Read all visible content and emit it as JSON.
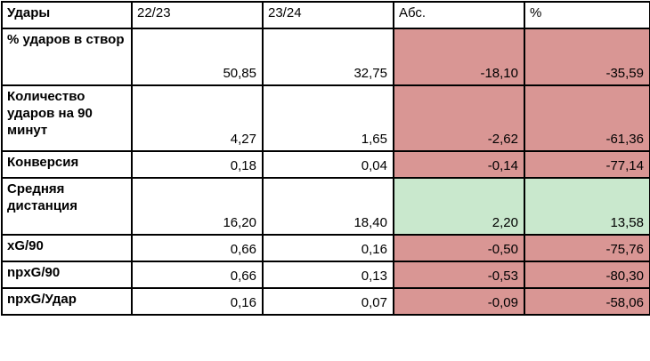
{
  "header": {
    "metric": "Удары",
    "season_prev": "22/23",
    "season_curr": "23/24",
    "abs": "Абс.",
    "pct": "%"
  },
  "colors": {
    "negative": "#d99694",
    "positive": "#c9e8cd",
    "border": "#000000",
    "background": "#ffffff"
  },
  "rows": [
    {
      "label": "% ударов в створ",
      "prev": "50,85",
      "curr": "32,75",
      "abs": "-18,10",
      "pct": "-35,59",
      "trend": "negative"
    },
    {
      "label": "Количество ударов на 90 минут",
      "prev": "4,27",
      "curr": "1,65",
      "abs": "-2,62",
      "pct": "-61,36",
      "trend": "negative"
    },
    {
      "label": "Конверсия",
      "prev": "0,18",
      "curr": "0,04",
      "abs": "-0,14",
      "pct": "-77,14",
      "trend": "negative"
    },
    {
      "label": "Средняя дистанция",
      "prev": "16,20",
      "curr": "18,40",
      "abs": "2,20",
      "pct": "13,58",
      "trend": "positive"
    },
    {
      "label": "xG/90",
      "prev": "0,66",
      "curr": "0,16",
      "abs": "-0,50",
      "pct": "-75,76",
      "trend": "negative"
    },
    {
      "label": "npxG/90",
      "prev": "0,66",
      "curr": "0,13",
      "abs": "-0,53",
      "pct": "-80,30",
      "trend": "negative"
    },
    {
      "label": "npxG/Удар",
      "prev": "0,16",
      "curr": "0,07",
      "abs": "-0,09",
      "pct": "-58,06",
      "trend": "negative"
    }
  ]
}
